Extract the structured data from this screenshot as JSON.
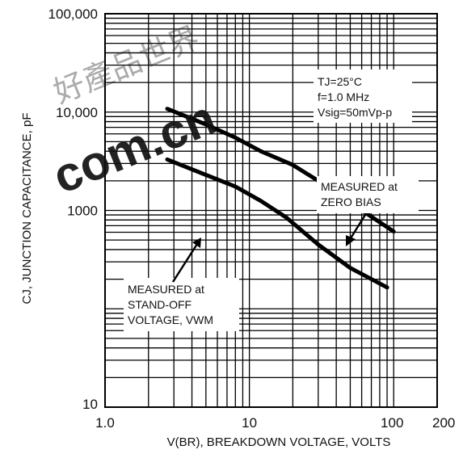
{
  "watermark": {
    "cjk_text": "好產品世界",
    "latin_text": "com.cn"
  },
  "chart_data": {
    "type": "line",
    "x_scale": "log",
    "y_scale": "log",
    "xlim": [
      1,
      200
    ],
    "ylim": [
      10,
      100000
    ],
    "xlabel": "V(BR), BREAKDOWN VOLTAGE, VOLTS",
    "ylabel": "CJ, JUNCTION CAPACITANCE, pF",
    "x_ticks": [
      {
        "value": 1,
        "label": "1.0"
      },
      {
        "value": 10,
        "label": "10"
      },
      {
        "value": 100,
        "label": "100"
      },
      {
        "value": 200,
        "label": "200"
      }
    ],
    "y_ticks": [
      {
        "value": 10,
        "label": "10"
      },
      {
        "value": 1000,
        "label": "1000"
      },
      {
        "value": 10000,
        "label": "10,000"
      },
      {
        "value": 100000,
        "label": "100,000"
      }
    ],
    "conditions": [
      "TJ=25°C",
      "f=1.0 MHz",
      "Vsig=50mVp-p"
    ],
    "series": [
      {
        "name": "MEASURED at ZERO BIAS",
        "x": [
          2.7,
          5,
          8,
          12,
          20,
          30,
          50,
          100
        ],
        "y": [
          10800,
          7500,
          5500,
          4000,
          2900,
          2000,
          1200,
          610
        ]
      },
      {
        "name": "MEASURED at STAND-OFF VOLTAGE, VWM",
        "x": [
          2.7,
          5,
          8,
          12,
          18,
          30,
          50,
          90
        ],
        "y": [
          3300,
          2300,
          1750,
          1250,
          850,
          450,
          260,
          165
        ]
      }
    ],
    "annotations": [
      {
        "lines": [
          "MEASURED at",
          "ZERO BIAS"
        ],
        "points_to_series": 0
      },
      {
        "lines": [
          "MEASURED at",
          "STAND-OFF",
          "VOLTAGE, VWM"
        ],
        "points_to_series": 1
      }
    ],
    "grid": true,
    "legend": "none"
  }
}
